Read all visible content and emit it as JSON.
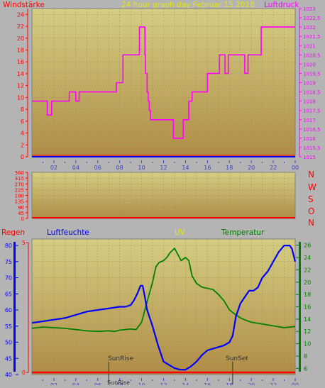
{
  "header": {
    "wind_label": "Windstärke",
    "title": "24 hour graph day   Februar 15 2018",
    "pressure_label": "Luftdruck"
  },
  "directions": [
    "N",
    "W",
    "S",
    "O",
    "N"
  ],
  "lower_header": {
    "regen": "Regen",
    "humidity": "Luftfeuchte",
    "uv": "UV",
    "temperature": "Temperatur"
  },
  "markers": {
    "sunrise": "SunRise",
    "sunset": "SunSet",
    "sunrise_bottom": "SunRise"
  },
  "colors": {
    "frame": "#b4b4b4",
    "plot_top": "#d4ce82",
    "plot_bottom": "#b08c46",
    "pressure": "#ff00ff",
    "humidity": "#0000ff",
    "temperature": "#008000",
    "rain": "#ff0000",
    "axis_left": "#ff0000",
    "axis_top_right": "#ff00ff"
  },
  "chart_data": [
    {
      "type": "line",
      "name": "wind-pressure",
      "x_ticks": [
        "02",
        "04",
        "06",
        "08",
        "10",
        "12",
        "14",
        "16",
        "18",
        "20",
        "22",
        "00"
      ],
      "y_left_ticks": [
        "0",
        "2",
        "4",
        "6",
        "8",
        "10",
        "12",
        "14",
        "16",
        "18",
        "20",
        "22",
        "24"
      ],
      "ylim_left": [
        0,
        25
      ],
      "y_right_ticks": [
        "1015",
        "1015,5",
        "1016",
        "1016,5",
        "1017",
        "1017,5",
        "1018",
        "1018,5",
        "1019",
        "1019,5",
        "1020",
        "1020,5",
        "1021",
        "1021,5",
        "1022",
        "1022,5",
        "1023"
      ],
      "ylim_right": [
        1015,
        1023
      ],
      "grid": true,
      "series": [
        {
          "x": [
            0,
            1.3,
            1.4,
            1.7,
            1.8,
            3.3,
            3.4,
            3.9,
            4.0,
            4.2,
            4.3,
            6.0,
            6.1,
            6.5,
            6.6,
            7.6,
            7.7,
            8.2,
            8.3,
            9.7,
            9.8,
            10.2,
            10.3,
            10.35,
            10.5,
            10.6,
            10.7,
            10.8,
            12.5,
            12.6,
            12.8,
            12.9,
            13.7,
            13.8,
            14.2,
            14.3,
            14.5,
            14.6,
            15.9,
            16.0,
            17.0,
            17.1,
            17.5,
            17.6,
            17.8,
            17.9,
            19.3,
            19.4,
            19.6,
            19.7,
            20.8,
            20.9,
            24.0
          ],
          "values": [
            1018,
            1018,
            1017.25,
            1017.25,
            1018,
            1018,
            1018.5,
            1018.5,
            1018,
            1018,
            1018.5,
            1018.5,
            1018.5,
            1018.5,
            1018.5,
            1018.5,
            1019,
            1019,
            1020.5,
            1020.5,
            1022,
            1022,
            1020.5,
            1019.5,
            1018.5,
            1018,
            1017.5,
            1017,
            1017,
            1017,
            1017,
            1016,
            1016,
            1017,
            1017,
            1018,
            1018,
            1018.5,
            1018.5,
            1019.5,
            1019.5,
            1020.5,
            1020.5,
            1019.5,
            1019.5,
            1020.5,
            1020.5,
            1019.5,
            1019.5,
            1020.5,
            1020.5,
            1022,
            1022
          ]
        },
        {
          "x": [
            0,
            24
          ],
          "values": [
            0,
            0
          ]
        }
      ]
    },
    {
      "type": "line",
      "name": "wind-direction",
      "y_left_ticks": [
        "0",
        "45",
        "90",
        "135",
        "180",
        "225",
        "270",
        "315",
        "360"
      ],
      "ylim": [
        0,
        360
      ],
      "series": [
        {
          "x": [
            0,
            24
          ],
          "values": [
            0,
            0
          ]
        }
      ]
    },
    {
      "type": "line",
      "name": "humidity-temperature",
      "x_ticks": [
        "02",
        "04",
        "06",
        "08",
        "10",
        "12",
        "14",
        "16",
        "18",
        "20",
        "22",
        "00"
      ],
      "y_rain_ticks": [
        "0",
        "5"
      ],
      "ylim_rain": [
        0,
        5
      ],
      "y_humidity_ticks": [
        "40",
        "45",
        "50",
        "55",
        "60",
        "65",
        "70",
        "75",
        "80"
      ],
      "ylim_humidity": [
        40,
        82
      ],
      "y_temp_ticks": [
        "6",
        "8",
        "10",
        "12",
        "14",
        "16",
        "18",
        "20",
        "22",
        "24",
        "26"
      ],
      "ylim_temp": [
        5,
        27
      ],
      "series": [
        {
          "x": [
            0,
            1,
            2,
            3,
            4,
            5,
            6,
            7,
            8,
            8.5,
            9,
            9.3,
            9.6,
            9.9,
            10.1,
            10.3,
            10.5,
            11,
            11.5,
            12,
            12.5,
            13,
            13.5,
            14,
            14.5,
            15,
            15.5,
            16,
            16.5,
            17,
            17.5,
            18,
            18.3,
            18.6,
            19,
            19.4,
            19.8,
            20.2,
            20.6,
            21,
            21.5,
            22,
            22.5,
            23,
            23.5,
            23.7,
            24
          ],
          "values": [
            56,
            56.5,
            57,
            57.5,
            58.5,
            59.5,
            60,
            60.5,
            61,
            61,
            61.5,
            63,
            65,
            67.5,
            67.5,
            64,
            60,
            55,
            49,
            44,
            43,
            42,
            41.5,
            41.5,
            42.5,
            44,
            46,
            47.5,
            48,
            48.5,
            49,
            50,
            52,
            58,
            62,
            64,
            66,
            66,
            67,
            70,
            72,
            75,
            78,
            80,
            80,
            79,
            75
          ]
        },
        {
          "x": [
            0,
            1,
            2,
            3,
            4,
            5,
            6,
            7,
            7.5,
            8,
            9,
            9.5,
            10,
            10.3,
            10.6,
            11,
            11.3,
            11.6,
            12,
            12.3,
            12.6,
            13,
            13.3,
            13.6,
            14,
            14.3,
            14.6,
            15,
            15.5,
            16,
            16.5,
            17,
            17.5,
            18,
            18.5,
            19,
            19.5,
            20,
            21,
            22,
            23,
            24
          ],
          "values": [
            12.5,
            12.7,
            12.6,
            12.5,
            12.3,
            12.1,
            12,
            12.1,
            12,
            12.2,
            12.4,
            12.3,
            13.5,
            15.5,
            17.5,
            20,
            22.5,
            23.2,
            23.5,
            24,
            24.8,
            25.5,
            24.5,
            23.5,
            24,
            23.5,
            21,
            19.8,
            19.2,
            19,
            18.8,
            18,
            17,
            15.5,
            14.8,
            14.2,
            13.8,
            13.5,
            13.2,
            12.9,
            12.6,
            12.8
          ]
        },
        {
          "x": [
            0,
            24
          ],
          "values": [
            0,
            0
          ]
        }
      ]
    }
  ]
}
